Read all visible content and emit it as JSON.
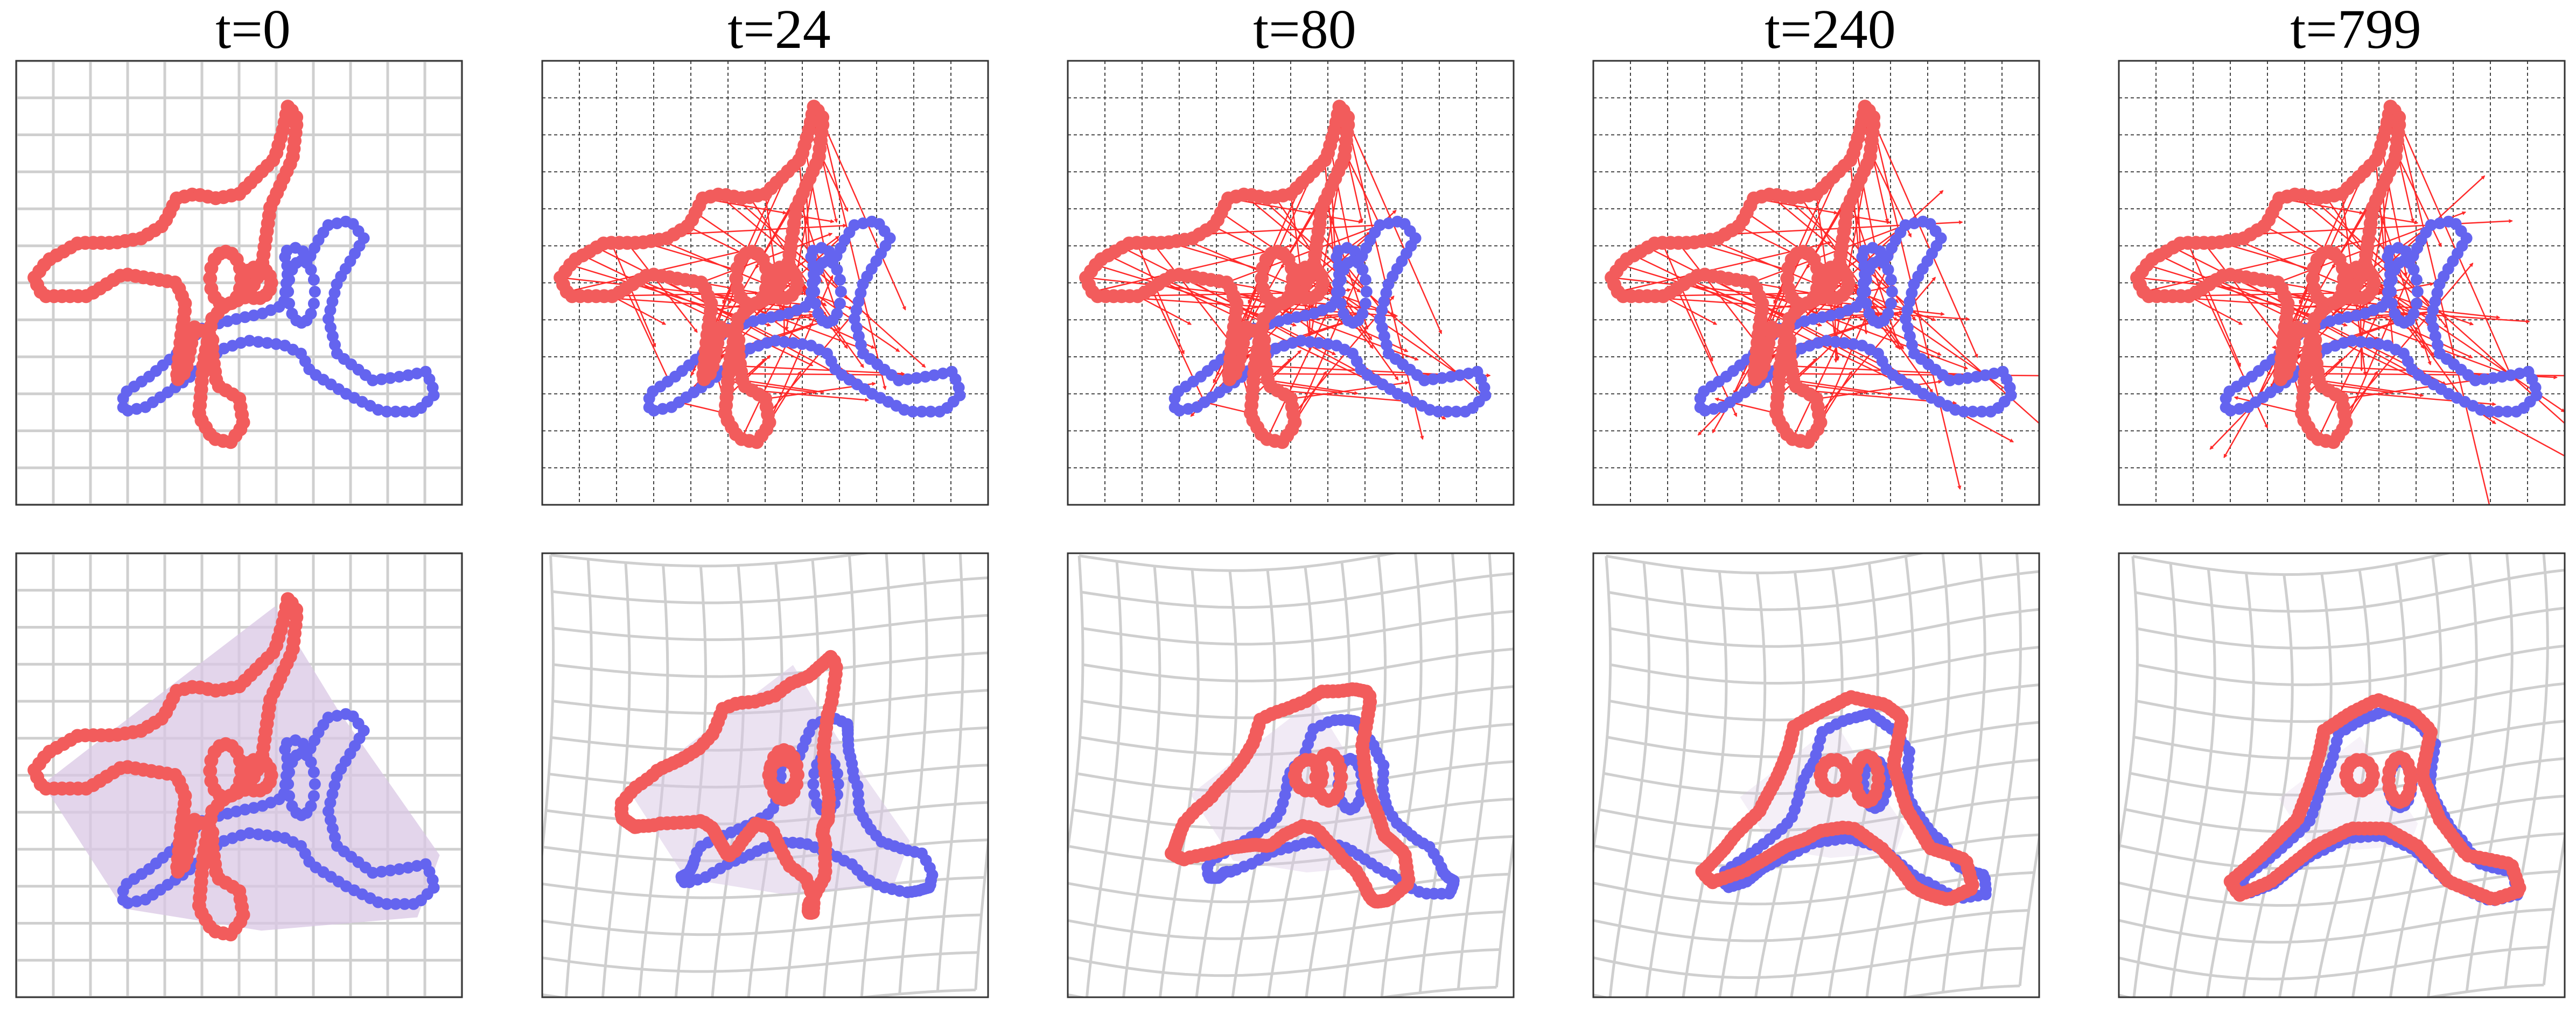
{
  "columns": [
    {
      "title": "t=0",
      "deform": 0.0,
      "progress": 0.0,
      "arrows": 0.0
    },
    {
      "title": "t=24",
      "deform": 0.55,
      "progress": 0.45,
      "arrows": 0.45
    },
    {
      "title": "t=80",
      "deform": 0.75,
      "progress": 0.72,
      "arrows": 0.65
    },
    {
      "title": "t=240",
      "deform": 0.85,
      "progress": 0.9,
      "arrows": 0.85
    },
    {
      "title": "t=799",
      "deform": 0.92,
      "progress": 1.0,
      "arrows": 1.0
    }
  ],
  "colors": {
    "source": "#f25c5c",
    "target": "#6464ef",
    "arrow": "#ff2a2a",
    "grid": "#cfcfcf",
    "hull": "#d9c7e4",
    "frame": "#333333"
  }
}
